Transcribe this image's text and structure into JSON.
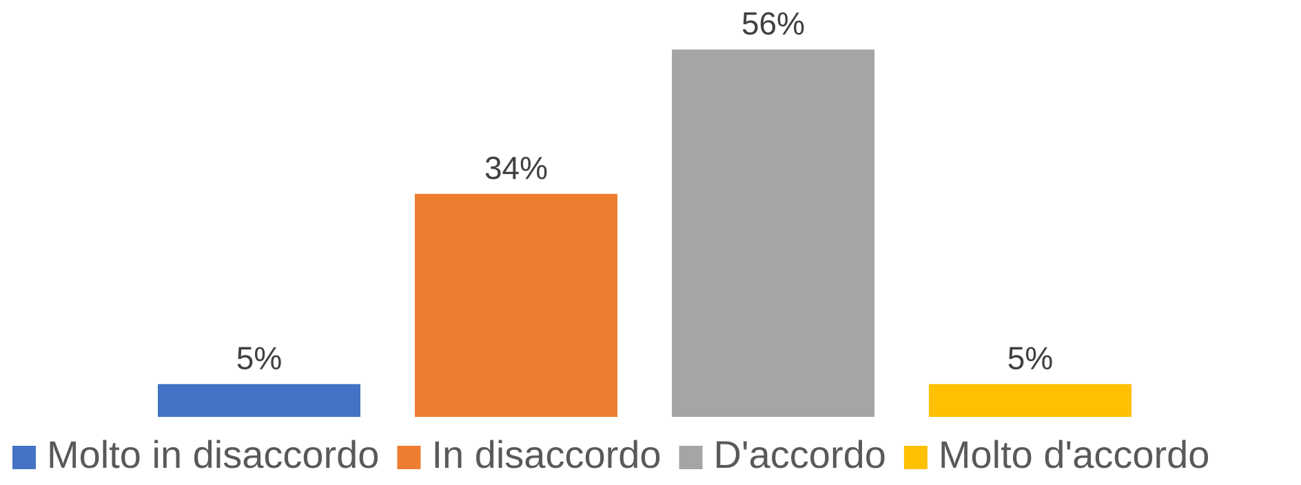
{
  "chart_data": {
    "type": "bar",
    "title": "",
    "xlabel": "",
    "ylabel": "",
    "ylim": [
      0,
      56
    ],
    "grid": false,
    "legend_position": "bottom",
    "series": [
      {
        "name": "Molto in disaccordo",
        "value": 5,
        "label": "5%",
        "color": "#4472C4"
      },
      {
        "name": "In disaccordo",
        "value": 34,
        "label": "34%",
        "color": "#ED7D31"
      },
      {
        "name": "D'accordo",
        "value": 56,
        "label": "56%",
        "color": "#A5A5A5"
      },
      {
        "name": "Molto d'accordo",
        "value": 5,
        "label": "5%",
        "color": "#FFC000"
      }
    ]
  }
}
